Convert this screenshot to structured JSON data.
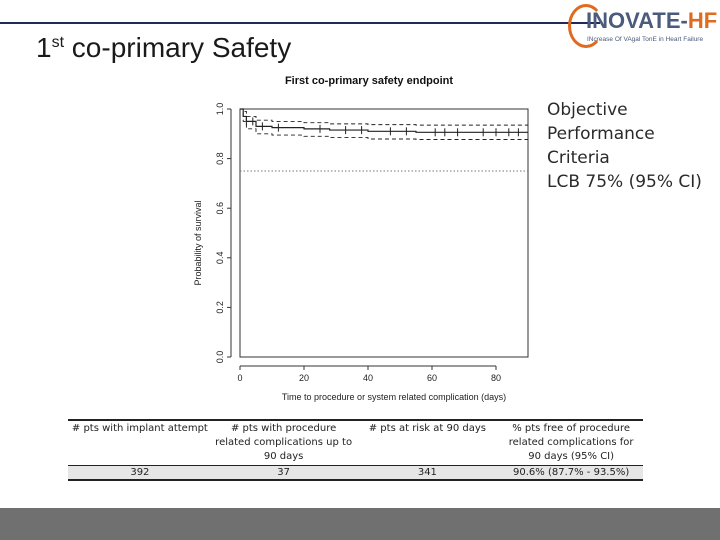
{
  "slide": {
    "title_main": "1",
    "title_sup": "st",
    "title_rest": " co-primary Safety"
  },
  "logo": {
    "word_a": "INOVATE-",
    "word_b": "HF",
    "tagline": "INcrease Of VAgal TonE in Heart Failure"
  },
  "side_note": {
    "lines": [
      "Objective",
      "Performance",
      "Criteria",
      "LCB 75%  (95% CI)"
    ]
  },
  "chart_data": {
    "type": "line",
    "title": "First co-primary safety endpoint",
    "xlabel": "Time to procedure or system related complication (days)",
    "ylabel": "Probability of survival",
    "xlim": [
      0,
      90
    ],
    "ylim": [
      0,
      1
    ],
    "xticks": [
      0,
      20,
      40,
      60,
      80
    ],
    "xtick_labels": [
      "0",
      "20",
      "40",
      "60",
      "80"
    ],
    "yticks": [
      0,
      0.2,
      0.4,
      0.6,
      0.8,
      1.0
    ],
    "ytick_labels": [
      "0.0",
      "0.2",
      "0.4",
      "0.6",
      "0.8",
      "1.0"
    ],
    "grid": false,
    "reference_line": {
      "y": 0.75,
      "style": "dotted"
    },
    "series": [
      {
        "role": "estimate",
        "style": "solid",
        "points": [
          [
            0,
            1.0
          ],
          [
            1,
            0.97
          ],
          [
            2,
            0.95
          ],
          [
            5,
            0.93
          ],
          [
            10,
            0.925
          ],
          [
            20,
            0.92
          ],
          [
            28,
            0.915
          ],
          [
            40,
            0.91
          ],
          [
            55,
            0.906
          ],
          [
            70,
            0.906
          ],
          [
            90,
            0.906
          ]
        ]
      },
      {
        "role": "upper_ci",
        "style": "dashed",
        "points": [
          [
            0,
            1.0
          ],
          [
            1,
            0.99
          ],
          [
            2,
            0.97
          ],
          [
            5,
            0.955
          ],
          [
            10,
            0.95
          ],
          [
            20,
            0.945
          ],
          [
            28,
            0.94
          ],
          [
            40,
            0.937
          ],
          [
            55,
            0.935
          ],
          [
            70,
            0.935
          ],
          [
            90,
            0.935
          ]
        ]
      },
      {
        "role": "lower_ci",
        "style": "dashed",
        "points": [
          [
            0,
            1.0
          ],
          [
            1,
            0.95
          ],
          [
            2,
            0.92
          ],
          [
            5,
            0.9
          ],
          [
            10,
            0.895
          ],
          [
            20,
            0.89
          ],
          [
            28,
            0.885
          ],
          [
            40,
            0.879
          ],
          [
            55,
            0.877
          ],
          [
            70,
            0.877
          ],
          [
            90,
            0.877
          ]
        ]
      }
    ],
    "censor_marks_x": [
      2,
      4,
      7,
      12,
      25,
      33,
      38,
      47,
      52,
      61,
      64,
      68,
      76,
      80,
      84,
      87
    ]
  },
  "table": {
    "headers": [
      "# pts with implant attempt",
      "# pts with procedure related complications up to 90 days",
      "# pts at risk at 90 days",
      "% pts free of procedure related complications for 90 days (95% CI)"
    ],
    "row": [
      "392",
      "37",
      "341",
      "90.6% (87.7% - 93.5%)"
    ]
  }
}
